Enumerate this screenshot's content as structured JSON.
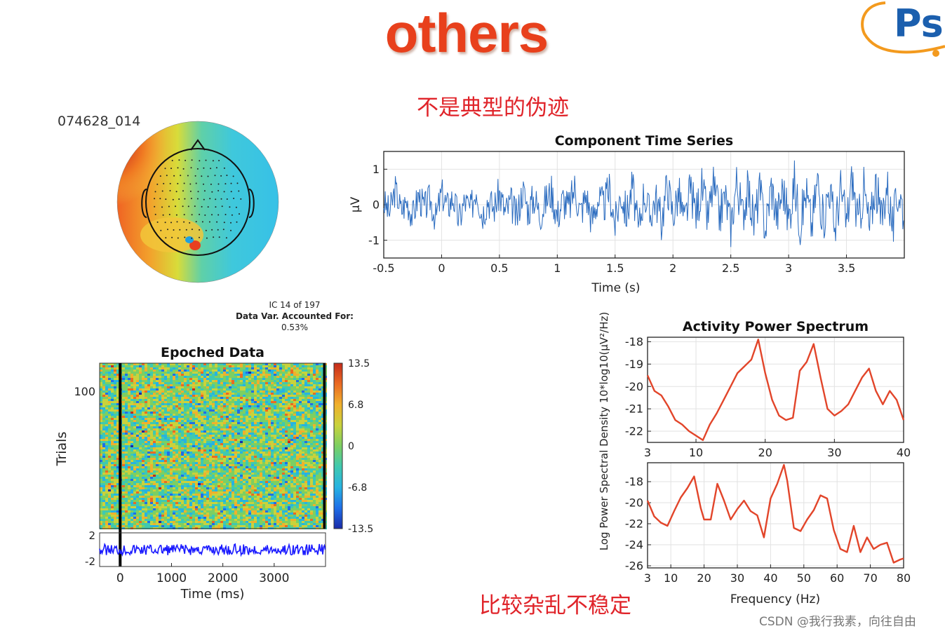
{
  "slide": {
    "title": "others",
    "note_top": "不是典型的伪迹",
    "note_bottom": "比较杂乱不稳定",
    "topo_label": "074628_014",
    "ic_info": [
      "IC 14 of 197",
      "Data Var. Accounted For:",
      "0.53%"
    ],
    "watermark": "CSDN @我行我素，向往自由",
    "logo_text": "Ps",
    "logo_colors": {
      "ring": "#f39a1e",
      "text": "#1b5fae"
    }
  },
  "chart_data": [
    {
      "type": "line",
      "title": "Component Time Series",
      "xlabel": "Time (s)",
      "ylabel": "μV",
      "xlim": [
        -0.5,
        4.0
      ],
      "ylim": [
        -1.5,
        1.5
      ],
      "xticks": [
        -0.5,
        0,
        0.5,
        1,
        1.5,
        2,
        2.5,
        3,
        3.5
      ],
      "xtick_labels": [
        "-0.5",
        "0",
        "0.5",
        "1",
        "1.5",
        "2",
        "2.5",
        "3",
        "3.5"
      ],
      "yticks": [
        1,
        0,
        -1
      ],
      "ytick_labels": [
        "1",
        "0",
        "-1"
      ],
      "grid": true,
      "color": "#2a6bbf",
      "description_samples": "noisy ~0 mean signal with amplitude growing toward the end",
      "x": [
        -0.5,
        -0.45,
        -0.4,
        -0.35,
        -0.3,
        -0.25,
        -0.2,
        -0.15,
        -0.1,
        -0.05,
        0,
        0.05,
        0.1,
        0.15,
        0.2,
        0.25,
        0.3,
        0.35,
        0.4,
        0.45,
        0.5,
        0.55,
        0.6,
        0.65,
        0.7,
        0.75,
        0.8,
        0.85,
        0.9,
        0.95,
        1,
        1.05,
        1.1,
        1.15,
        1.2,
        1.25,
        1.3,
        1.35,
        1.4,
        1.45,
        1.5,
        1.55,
        1.6,
        1.65,
        1.7,
        1.75,
        1.8,
        1.85,
        1.9,
        1.95,
        2,
        2.05,
        2.1,
        2.15,
        2.2,
        2.25,
        2.3,
        2.35,
        2.4,
        2.45,
        2.5,
        2.55,
        2.6,
        2.65,
        2.7,
        2.75,
        2.8,
        2.85,
        2.9,
        2.95,
        3,
        3.05,
        3.1,
        3.15,
        3.2,
        3.25,
        3.3,
        3.35,
        3.4,
        3.45,
        3.5,
        3.55,
        3.6,
        3.65,
        3.7,
        3.75,
        3.8,
        3.85,
        3.9,
        3.95,
        4.0
      ],
      "y": [
        0.1,
        -0.4,
        0.8,
        -0.3,
        0.2,
        -0.6,
        0.5,
        -0.2,
        0.3,
        -0.7,
        0.6,
        -0.1,
        0.4,
        -0.8,
        0.2,
        -0.3,
        0.9,
        -0.5,
        0.3,
        -0.2,
        0.6,
        -0.4,
        0.1,
        -0.7,
        0.8,
        -0.3,
        0.4,
        -0.5,
        0.2,
        0.7,
        -0.6,
        0.3,
        -0.2,
        0.9,
        -0.4,
        0.5,
        -0.8,
        0.3,
        -0.1,
        0.8,
        -1.0,
        0.6,
        -0.5,
        1.0,
        -1.4,
        0.7,
        -0.6,
        0.4,
        -0.9,
        1.1,
        -0.5,
        0.6,
        -1.0,
        0.8,
        -0.4,
        0.9,
        -0.7,
        1.0,
        -0.6,
        0.5,
        -1.1,
        1.2,
        -0.5,
        0.8,
        -0.9,
        0.7,
        -1.2,
        1.0,
        -0.6,
        0.9,
        -0.8,
        1.2,
        -1.0,
        0.7,
        -1.1,
        1.3,
        -0.9,
        1.0,
        -1.2,
        0.8,
        -1.0,
        1.4,
        -1.1,
        0.9,
        -1.3,
        1.2,
        -0.9,
        1.1,
        -1.2,
        0.8,
        -0.4
      ]
    },
    {
      "type": "line",
      "title": "Activity Power Spectrum",
      "xlabel": "",
      "ylabel": "",
      "xlim": [
        3,
        40
      ],
      "ylim": [
        -22.5,
        -17.8
      ],
      "xticks": [
        3,
        10,
        20,
        30,
        40
      ],
      "xtick_labels": [
        "3",
        "10",
        "20",
        "30",
        "40"
      ],
      "yticks": [
        -18,
        -19,
        -20,
        -21,
        -22
      ],
      "ytick_labels": [
        "-18",
        "-19",
        "-20",
        "-21",
        "-22"
      ],
      "grid": true,
      "color": "#e2452a",
      "x": [
        3,
        4,
        5,
        6,
        7,
        8,
        9,
        10,
        11,
        12,
        13,
        14,
        15,
        16,
        17,
        18,
        19,
        20,
        21,
        22,
        23,
        24,
        25,
        26,
        27,
        28,
        29,
        30,
        31,
        32,
        33,
        34,
        35,
        36,
        37,
        38,
        39,
        40
      ],
      "y": [
        -19.5,
        -20.2,
        -20.4,
        -20.9,
        -21.5,
        -21.7,
        -22.0,
        -22.2,
        -22.4,
        -21.7,
        -21.2,
        -20.6,
        -20.0,
        -19.4,
        -19.1,
        -18.8,
        -17.9,
        -19.4,
        -20.6,
        -21.3,
        -21.5,
        -21.4,
        -19.3,
        -18.9,
        -18.1,
        -19.6,
        -21.0,
        -21.3,
        -21.1,
        -20.8,
        -20.2,
        -19.6,
        -19.2,
        -20.2,
        -20.8,
        -20.2,
        -20.6,
        -21.5
      ]
    },
    {
      "type": "line",
      "title": "",
      "xlabel": "Frequency (Hz)",
      "ylabel": "Log Power Spectral Density 10*log10(μV²/Hz)",
      "xlim": [
        3,
        80
      ],
      "ylim": [
        -26.2,
        -16.2
      ],
      "xticks": [
        3,
        10,
        20,
        30,
        40,
        50,
        60,
        70,
        80
      ],
      "xtick_labels": [
        "3",
        "10",
        "20",
        "30",
        "40",
        "50",
        "60",
        "70",
        "80"
      ],
      "yticks": [
        -18,
        -20,
        -22,
        -24,
        -26
      ],
      "ytick_labels": [
        "-18",
        "-20",
        "-22",
        "-24",
        "-26"
      ],
      "grid": true,
      "color": "#e2452a",
      "x": [
        3,
        5,
        7,
        9,
        11,
        13,
        15,
        17,
        19,
        20,
        22,
        24,
        26,
        28,
        30,
        32,
        34,
        36,
        38,
        40,
        42,
        44,
        45,
        47,
        49,
        51,
        53,
        55,
        57,
        59,
        61,
        63,
        65,
        67,
        69,
        71,
        73,
        75,
        77,
        79,
        80
      ],
      "y": [
        -19.8,
        -21.3,
        -21.9,
        -22.2,
        -20.8,
        -19.5,
        -18.6,
        -17.5,
        -20.5,
        -21.6,
        -21.6,
        -18.2,
        -19.8,
        -21.6,
        -20.6,
        -19.8,
        -20.8,
        -21.2,
        -23.3,
        -19.6,
        -18.2,
        -16.4,
        -17.9,
        -22.4,
        -22.7,
        -21.6,
        -20.7,
        -19.3,
        -19.6,
        -22.6,
        -24.4,
        -24.7,
        -22.2,
        -24.7,
        -23.3,
        -24.4,
        -24.0,
        -23.8,
        -25.7,
        -25.4,
        -25.3
      ]
    },
    {
      "type": "heatmap",
      "title": "Epoched Data",
      "xlabel": "Time (ms)",
      "ylabel": "Trials",
      "xticks": [
        0,
        1000,
        2000,
        3000
      ],
      "xtick_labels": [
        "0",
        "1000",
        "2000",
        "3000"
      ],
      "yticks": [
        100
      ],
      "ytick_labels": [
        "100"
      ],
      "colorbar_ticks": [
        "13.5",
        "6.8",
        "0",
        "-6.8",
        "-13.5"
      ],
      "colorbar_range": [
        -13.5,
        13.5
      ],
      "erp_yticks": [
        "2",
        "-2"
      ],
      "erp_color": "#1a1aff"
    }
  ]
}
